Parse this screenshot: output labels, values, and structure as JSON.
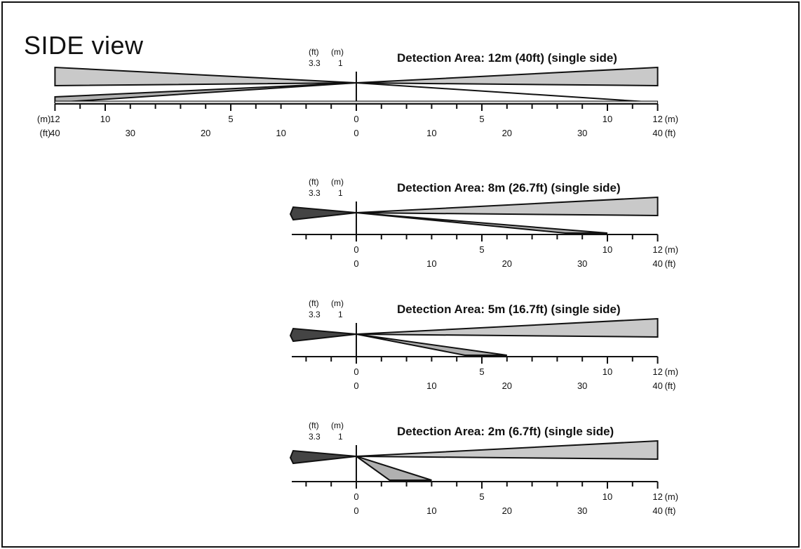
{
  "title": "SIDE view",
  "unit_labels": {
    "ft": "(ft)",
    "m": "(m)",
    "ft_tick": "3.3",
    "m_tick": "1"
  },
  "axis": {
    "m_suffix": "(m)",
    "ft_suffix": "(ft)",
    "left_m_prefix": "(m)",
    "left_ft_prefix": "(ft)"
  },
  "panels": [
    {
      "caption": "Detection Area: 12m (40ft) (single side)",
      "range_m": 12,
      "double_sided": true,
      "m_labels": [
        "12",
        "10",
        "5",
        "0",
        "5",
        "10",
        "12"
      ],
      "ft_labels": [
        "40",
        "30",
        "20",
        "10",
        "0",
        "10",
        "20",
        "30",
        "40"
      ]
    },
    {
      "caption": "Detection Area: 8m (26.7ft) (single side)",
      "range_m": 8,
      "double_sided": false,
      "m_labels": [
        "0",
        "5",
        "10",
        "12"
      ],
      "ft_labels": [
        "0",
        "10",
        "20",
        "30",
        "40"
      ]
    },
    {
      "caption": "Detection Area: 5m (16.7ft) (single side)",
      "range_m": 5,
      "double_sided": false,
      "m_labels": [
        "0",
        "5",
        "10",
        "12"
      ],
      "ft_labels": [
        "0",
        "10",
        "20",
        "30",
        "40"
      ]
    },
    {
      "caption": "Detection Area: 2m (6.7ft) (single side)",
      "range_m": 2,
      "double_sided": false,
      "m_labels": [
        "0",
        "5",
        "10",
        "12"
      ],
      "ft_labels": [
        "0",
        "10",
        "20",
        "30",
        "40"
      ]
    }
  ]
}
